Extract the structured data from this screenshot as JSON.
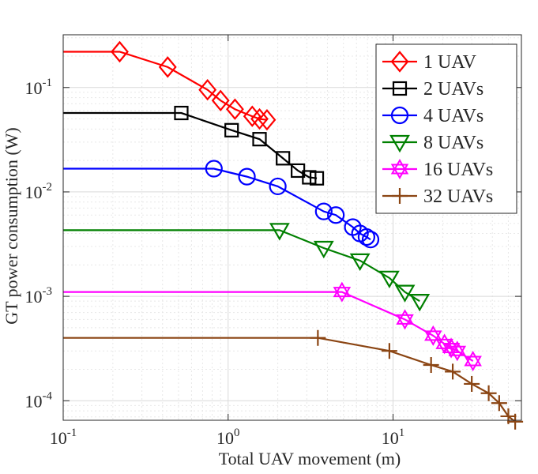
{
  "chart_data": {
    "type": "line",
    "title": "",
    "xlabel": "Total UAV movement (m)",
    "ylabel": "GT power consumption (W)",
    "xscale": "log",
    "yscale": "log",
    "xlim": [
      0.1,
      60
    ],
    "ylim": [
      6.5e-05,
      0.32
    ],
    "grid": true,
    "legend_position": "top-right",
    "x_ticks": [
      {
        "value": 0.1,
        "base": "10",
        "exp": "-1"
      },
      {
        "value": 1,
        "base": "10",
        "exp": "0"
      },
      {
        "value": 10,
        "base": "10",
        "exp": "1"
      }
    ],
    "y_ticks": [
      {
        "value": 0.0001,
        "base": "10",
        "exp": "-4"
      },
      {
        "value": 0.001,
        "base": "10",
        "exp": "-3"
      },
      {
        "value": 0.01,
        "base": "10",
        "exp": "-2"
      },
      {
        "value": 0.1,
        "base": "10",
        "exp": "-1"
      }
    ],
    "series": [
      {
        "name": "1 UAV",
        "color": "#ff0000",
        "marker": "diamond",
        "x": [
          0.1,
          0.22,
          0.43,
          0.75,
          0.9,
          1.1,
          1.4,
          1.55,
          1.72
        ],
        "y": [
          0.22,
          0.22,
          0.157,
          0.095,
          0.075,
          0.062,
          0.053,
          0.05,
          0.049
        ]
      },
      {
        "name": "2 UAVs",
        "color": "#000000",
        "marker": "square",
        "x": [
          0.1,
          0.52,
          1.05,
          1.55,
          2.15,
          2.65,
          3.1,
          3.45
        ],
        "y": [
          0.057,
          0.057,
          0.039,
          0.032,
          0.021,
          0.016,
          0.0138,
          0.0135
        ]
      },
      {
        "name": "4 UAVs",
        "color": "#0000ff",
        "marker": "circle",
        "x": [
          0.1,
          0.82,
          1.3,
          2.0,
          3.8,
          4.5,
          5.7,
          6.3,
          6.9,
          7.3
        ],
        "y": [
          0.0167,
          0.0167,
          0.014,
          0.0113,
          0.0065,
          0.006,
          0.0046,
          0.004,
          0.0037,
          0.0035
        ]
      },
      {
        "name": "8 UAVs",
        "color": "#008000",
        "marker": "triangle-down",
        "x": [
          0.1,
          2.05,
          3.8,
          6.3,
          9.5,
          11.8,
          14.5
        ],
        "y": [
          0.0043,
          0.0043,
          0.0029,
          0.0022,
          0.0015,
          0.0011,
          0.0009
        ]
      },
      {
        "name": "16 UAVs",
        "color": "#ff00ff",
        "marker": "hexagram",
        "x": [
          0.1,
          4.9,
          11.8,
          17.5,
          20.5,
          22.5,
          24.5,
          30.5
        ],
        "y": [
          0.0011,
          0.0011,
          0.0006,
          0.00042,
          0.00035,
          0.00032,
          0.0003,
          0.00024
        ]
      },
      {
        "name": "32 UAVs",
        "color": "#8b4513",
        "marker": "plus",
        "x": [
          0.1,
          3.5,
          9.5,
          17,
          23,
          30,
          38,
          44,
          50,
          55
        ],
        "y": [
          0.0004,
          0.0004,
          0.0003,
          0.00022,
          0.00019,
          0.000145,
          0.000118,
          9.5e-05,
          7.1e-05,
          6.3e-05
        ]
      }
    ]
  }
}
